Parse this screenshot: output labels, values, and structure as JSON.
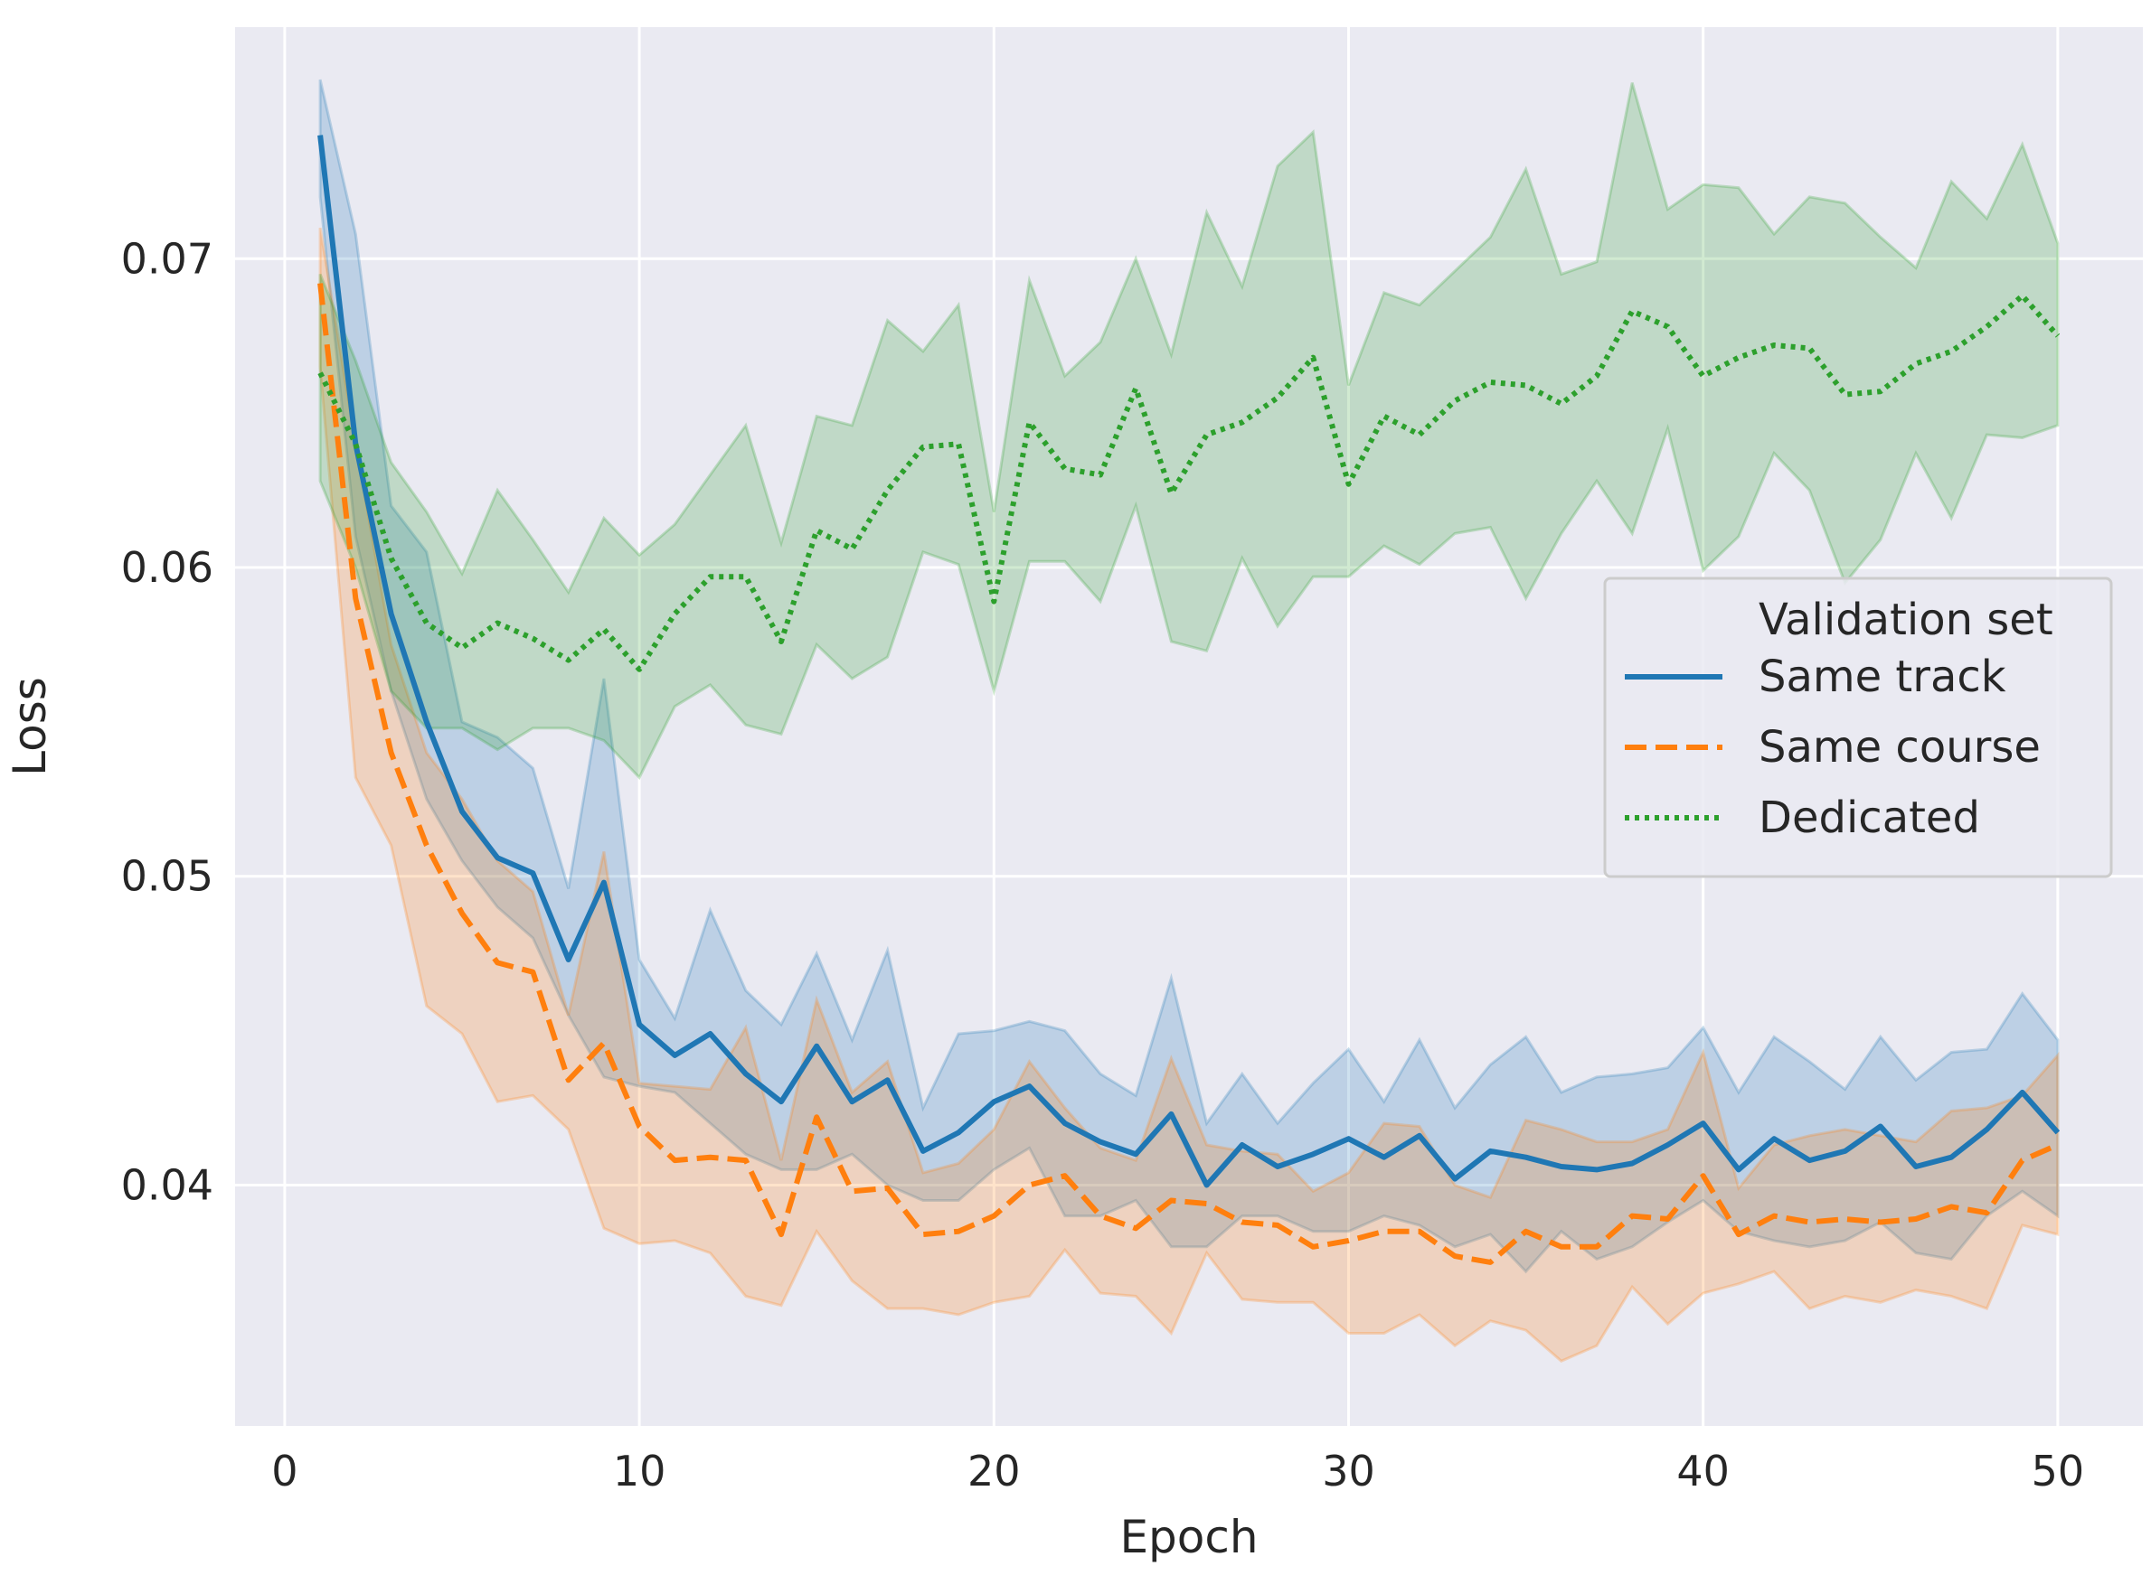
{
  "chart_data": {
    "type": "line",
    "title": "",
    "xlabel": "Epoch",
    "ylabel": "Loss",
    "xlim": [
      -1.4,
      52.4
    ],
    "ylim": [
      0.0322,
      0.0775
    ],
    "xticks": [
      0,
      10,
      20,
      30,
      40,
      50
    ],
    "xtick_labels": [
      "0",
      "10",
      "20",
      "30",
      "40",
      "50"
    ],
    "yticks": [
      0.04,
      0.05,
      0.06,
      0.07
    ],
    "ytick_labels": [
      "0.04",
      "0.05",
      "0.06",
      "0.07"
    ],
    "grid": true,
    "legend": {
      "title": "Validation set",
      "placement": "center-right"
    },
    "x": [
      1,
      2,
      3,
      4,
      5,
      6,
      7,
      8,
      9,
      10,
      11,
      12,
      13,
      14,
      15,
      16,
      17,
      18,
      19,
      20,
      21,
      22,
      23,
      24,
      25,
      26,
      27,
      28,
      29,
      30,
      31,
      32,
      33,
      34,
      35,
      36,
      37,
      38,
      39,
      40,
      41,
      42,
      43,
      44,
      45,
      46,
      47,
      48,
      49,
      50
    ],
    "series": [
      {
        "name": "Same track",
        "color": "#1f77b4",
        "style": "solid",
        "values": [
          0.074,
          0.064,
          0.0585,
          0.055,
          0.0521,
          0.0506,
          0.0501,
          0.0473,
          0.0498,
          0.0452,
          0.0442,
          0.0449,
          0.0436,
          0.0427,
          0.0445,
          0.0427,
          0.0434,
          0.0411,
          0.0417,
          0.0427,
          0.0432,
          0.042,
          0.0414,
          0.041,
          0.0423,
          0.04,
          0.0413,
          0.0406,
          0.041,
          0.0415,
          0.0409,
          0.0416,
          0.0402,
          0.0411,
          0.0409,
          0.0406,
          0.0405,
          0.0407,
          0.0413,
          0.042,
          0.0405,
          0.0415,
          0.0408,
          0.0411,
          0.0419,
          0.0406,
          0.0409,
          0.0418,
          0.043,
          0.0417
        ],
        "lower": [
          0.072,
          0.061,
          0.056,
          0.0525,
          0.0505,
          0.049,
          0.048,
          0.0455,
          0.0435,
          0.0432,
          0.043,
          0.042,
          0.041,
          0.0405,
          0.0405,
          0.041,
          0.04,
          0.0395,
          0.0395,
          0.0405,
          0.0412,
          0.039,
          0.039,
          0.0395,
          0.038,
          0.038,
          0.039,
          0.039,
          0.0385,
          0.0385,
          0.039,
          0.0387,
          0.038,
          0.0384,
          0.0372,
          0.0385,
          0.0376,
          0.038,
          0.0388,
          0.0395,
          0.0385,
          0.0382,
          0.038,
          0.0382,
          0.0388,
          0.0378,
          0.0376,
          0.039,
          0.0398,
          0.039
        ],
        "upper": [
          0.0758,
          0.0708,
          0.062,
          0.0605,
          0.055,
          0.0545,
          0.0535,
          0.0496,
          0.0564,
          0.0473,
          0.0454,
          0.0489,
          0.0463,
          0.0452,
          0.0475,
          0.0447,
          0.0476,
          0.0425,
          0.0449,
          0.045,
          0.0453,
          0.045,
          0.0436,
          0.0429,
          0.0467,
          0.042,
          0.0436,
          0.042,
          0.0433,
          0.0444,
          0.0427,
          0.0447,
          0.0425,
          0.0439,
          0.0448,
          0.043,
          0.0435,
          0.0436,
          0.0438,
          0.0451,
          0.043,
          0.0448,
          0.044,
          0.0431,
          0.0448,
          0.0434,
          0.0443,
          0.0444,
          0.0462,
          0.0447
        ]
      },
      {
        "name": "Same course",
        "color": "#ff7f0e",
        "style": "dashed",
        "values": [
          0.0692,
          0.059,
          0.054,
          0.051,
          0.0488,
          0.0472,
          0.0469,
          0.0434,
          0.0446,
          0.0419,
          0.0408,
          0.0409,
          0.0408,
          0.0384,
          0.0422,
          0.0398,
          0.0399,
          0.0384,
          0.0385,
          0.039,
          0.04,
          0.0403,
          0.039,
          0.0386,
          0.0395,
          0.0394,
          0.0388,
          0.0387,
          0.038,
          0.0382,
          0.0385,
          0.0385,
          0.0377,
          0.0375,
          0.0385,
          0.038,
          0.038,
          0.039,
          0.0389,
          0.0403,
          0.0384,
          0.039,
          0.0388,
          0.0389,
          0.0388,
          0.0389,
          0.0393,
          0.0391,
          0.0408,
          0.0413
        ],
        "lower": [
          0.0665,
          0.0532,
          0.051,
          0.0458,
          0.0449,
          0.0427,
          0.0429,
          0.0418,
          0.0386,
          0.0381,
          0.0382,
          0.0378,
          0.0364,
          0.0361,
          0.0385,
          0.0369,
          0.036,
          0.036,
          0.0358,
          0.0362,
          0.0364,
          0.0379,
          0.0365,
          0.0364,
          0.0352,
          0.0378,
          0.0363,
          0.0362,
          0.0362,
          0.0352,
          0.0352,
          0.0358,
          0.0348,
          0.0356,
          0.0353,
          0.0343,
          0.0348,
          0.0367,
          0.0355,
          0.0365,
          0.0368,
          0.0372,
          0.036,
          0.0364,
          0.0362,
          0.0366,
          0.0364,
          0.036,
          0.0387,
          0.0384
        ],
        "upper": [
          0.071,
          0.064,
          0.0575,
          0.054,
          0.0525,
          0.0505,
          0.0495,
          0.0455,
          0.0508,
          0.0433,
          0.0432,
          0.0431,
          0.0451,
          0.0408,
          0.046,
          0.043,
          0.044,
          0.0404,
          0.0407,
          0.0418,
          0.044,
          0.0425,
          0.0412,
          0.0408,
          0.0441,
          0.0413,
          0.0411,
          0.041,
          0.0398,
          0.0404,
          0.042,
          0.0419,
          0.04,
          0.0396,
          0.0421,
          0.0418,
          0.0414,
          0.0414,
          0.0418,
          0.0443,
          0.0399,
          0.0413,
          0.0416,
          0.0418,
          0.0416,
          0.0414,
          0.0424,
          0.0425,
          0.0429,
          0.0442
        ]
      },
      {
        "name": "Dedicated",
        "color": "#2ca02c",
        "style": "dotted",
        "values": [
          0.0663,
          0.064,
          0.0603,
          0.0582,
          0.0574,
          0.0582,
          0.0577,
          0.057,
          0.058,
          0.0567,
          0.0585,
          0.0597,
          0.0597,
          0.0576,
          0.0612,
          0.0606,
          0.0625,
          0.0639,
          0.064,
          0.0589,
          0.0647,
          0.0632,
          0.063,
          0.0658,
          0.0624,
          0.0643,
          0.0647,
          0.0655,
          0.0668,
          0.0627,
          0.0649,
          0.0643,
          0.0654,
          0.066,
          0.0659,
          0.0653,
          0.0662,
          0.0683,
          0.0678,
          0.0662,
          0.0668,
          0.0672,
          0.0671,
          0.0656,
          0.0657,
          0.0666,
          0.067,
          0.0678,
          0.0688,
          0.0675
        ],
        "lower": [
          0.0628,
          0.06,
          0.056,
          0.0548,
          0.0548,
          0.0541,
          0.0548,
          0.0548,
          0.0544,
          0.0532,
          0.0555,
          0.0562,
          0.0549,
          0.0546,
          0.0575,
          0.0564,
          0.0571,
          0.0605,
          0.0601,
          0.056,
          0.0602,
          0.0602,
          0.0589,
          0.062,
          0.0576,
          0.0573,
          0.0603,
          0.0581,
          0.0597,
          0.0597,
          0.0607,
          0.0601,
          0.0611,
          0.0613,
          0.059,
          0.0611,
          0.0628,
          0.0611,
          0.0645,
          0.0599,
          0.061,
          0.0637,
          0.0625,
          0.0595,
          0.0609,
          0.0637,
          0.0616,
          0.0643,
          0.0642,
          0.0646
        ],
        "upper": [
          0.0695,
          0.0667,
          0.0634,
          0.0618,
          0.0598,
          0.0625,
          0.0609,
          0.0592,
          0.0616,
          0.0604,
          0.0614,
          0.063,
          0.0646,
          0.0608,
          0.0649,
          0.0646,
          0.068,
          0.067,
          0.0685,
          0.0618,
          0.0693,
          0.0662,
          0.0673,
          0.07,
          0.0669,
          0.0715,
          0.0691,
          0.073,
          0.0741,
          0.0659,
          0.0689,
          0.0685,
          0.0696,
          0.0707,
          0.0729,
          0.0695,
          0.0699,
          0.0757,
          0.0716,
          0.0724,
          0.0723,
          0.0708,
          0.072,
          0.0718,
          0.0707,
          0.0697,
          0.0725,
          0.0713,
          0.0737,
          0.0705
        ]
      }
    ]
  }
}
